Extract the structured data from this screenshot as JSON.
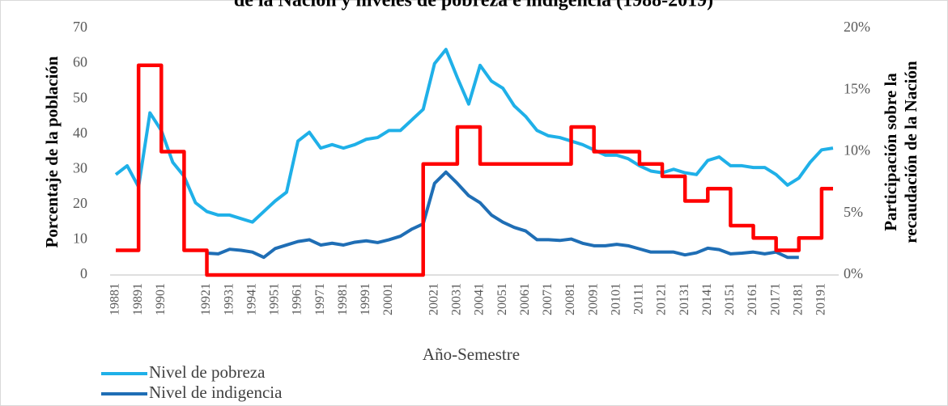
{
  "chart_data": {
    "type": "line",
    "title": "de la Nación y niveles de pobreza e indigencia (1988-2019)",
    "xlabel": "Año-Semestre",
    "ylabel": "Porcentaje de la población",
    "y2label": [
      "Participación sobre la",
      "recaudación de la Nación"
    ],
    "categories": [
      "19881",
      null,
      "19891",
      null,
      "19901",
      null,
      null,
      null,
      "19921",
      null,
      "19931",
      null,
      "19941",
      null,
      "19951",
      null,
      "19961",
      null,
      "19971",
      null,
      "19981",
      null,
      "19991",
      null,
      "20001",
      null,
      null,
      null,
      "20021",
      null,
      "20031",
      null,
      "20041",
      null,
      "20051",
      null,
      "20061",
      null,
      "20071",
      null,
      "20081",
      null,
      "20091",
      null,
      "20101",
      null,
      "20111",
      null,
      "20121",
      null,
      "20131",
      null,
      "20141",
      null,
      "20151",
      null,
      "20161",
      null,
      "20171",
      null,
      "20181",
      null,
      "20191",
      null
    ],
    "series": [
      {
        "name": "Nivel de pobreza",
        "color": "#1fb0e8",
        "values": [
          28.5,
          31,
          25,
          46,
          41,
          32,
          28,
          20.5,
          18,
          17,
          17,
          16,
          15,
          18,
          21,
          23.5,
          38,
          40.5,
          36,
          37,
          36,
          37,
          38.5,
          39,
          41,
          41,
          44,
          47,
          60,
          64,
          56,
          48.5,
          59.5,
          55,
          53,
          48,
          45,
          41,
          39.5,
          39,
          38,
          37,
          35.5,
          34,
          34,
          33,
          31,
          29.5,
          29,
          30,
          29,
          28.5,
          32.5,
          33.5,
          31,
          31,
          30.5,
          30.5,
          28.5,
          25.5,
          27.5,
          32,
          35.5,
          36
        ]
      },
      {
        "name": "Nivel de indigencia",
        "color": "#1f6eb5",
        "values": [
          null,
          null,
          null,
          null,
          null,
          null,
          null,
          null,
          6.2,
          6,
          7.3,
          7,
          6.5,
          5,
          7.5,
          8.5,
          9.5,
          10,
          8.5,
          9,
          8.5,
          9.3,
          9.7,
          9.2,
          10,
          11,
          13,
          14.5,
          26,
          29.2,
          26,
          22.5,
          20.5,
          17,
          15,
          13.5,
          12.5,
          10,
          10,
          9.8,
          10.2,
          9,
          8.3,
          8.3,
          8.7,
          8.3,
          7.4,
          6.5,
          6.5,
          6.5,
          5.7,
          6.3,
          7.6,
          7.2,
          6,
          6.2,
          6.5,
          6,
          6.5,
          5,
          5,
          null,
          null,
          null
        ]
      },
      {
        "name": "Participación sobre la recaudación",
        "color": "#ff0000",
        "axis": "y2",
        "step": true,
        "values": [
          2,
          2,
          17,
          17,
          10,
          10,
          2,
          2,
          0,
          0,
          0,
          0,
          0,
          0,
          0,
          0,
          0,
          0,
          0,
          0,
          0,
          0,
          0,
          0,
          0,
          0,
          0,
          9,
          9,
          9,
          12,
          12,
          9,
          9,
          9,
          9,
          9,
          9,
          9,
          9,
          12,
          12,
          10,
          10,
          10,
          10,
          9,
          9,
          8,
          8,
          6,
          6,
          7,
          7,
          4,
          4,
          3,
          3,
          2,
          2,
          3,
          3,
          7,
          7
        ]
      }
    ],
    "ylim": [
      0,
      70
    ],
    "yticks": [
      0,
      10,
      20,
      30,
      40,
      50,
      60,
      70
    ],
    "y2lim": [
      0,
      20
    ],
    "y2ticks": [
      {
        "value": 0,
        "label": "0%"
      },
      {
        "value": 5,
        "label": "5%"
      },
      {
        "value": 10,
        "label": "10%"
      },
      {
        "value": 15,
        "label": "15%"
      },
      {
        "value": 20,
        "label": "20%"
      }
    ],
    "legend": "bottom-left",
    "legend_entries": [
      0,
      1
    ]
  }
}
